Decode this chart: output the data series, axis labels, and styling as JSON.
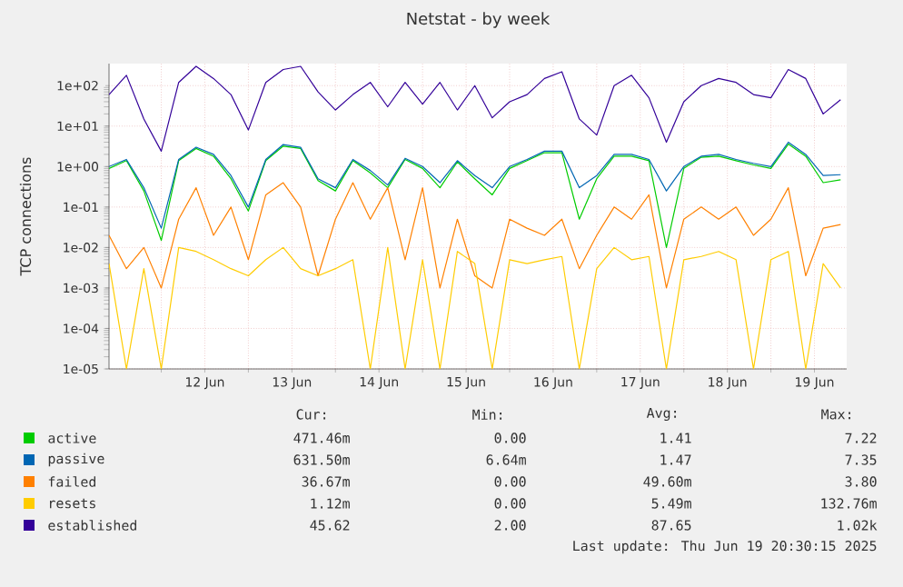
{
  "chart_data": {
    "type": "line",
    "title": "Netstat - by week",
    "ylabel": "TCP connections",
    "log": "y",
    "grid": true,
    "legend": "bottom",
    "marker": "none",
    "line_style": "solid",
    "xlim": [
      "2025-06-11T09:36",
      "2025-06-19T20:53"
    ],
    "ylim": [
      1e-05,
      350
    ],
    "xticks": [
      {
        "value": "2025-06-12",
        "label": null
      },
      {
        "value": "2025-06-12T12:00",
        "label": "12 Jun"
      },
      {
        "value": "2025-06-13",
        "label": null
      },
      {
        "value": "2025-06-13T12:00",
        "label": "13 Jun"
      },
      {
        "value": "2025-06-14",
        "label": null
      },
      {
        "value": "2025-06-14T12:00",
        "label": "14 Jun"
      },
      {
        "value": "2025-06-15",
        "label": null
      },
      {
        "value": "2025-06-15T12:00",
        "label": "15 Jun"
      },
      {
        "value": "2025-06-16",
        "label": null
      },
      {
        "value": "2025-06-16T12:00",
        "label": "16 Jun"
      },
      {
        "value": "2025-06-17",
        "label": null
      },
      {
        "value": "2025-06-17T12:00",
        "label": "17 Jun"
      },
      {
        "value": "2025-06-18",
        "label": null
      },
      {
        "value": "2025-06-18T12:00",
        "label": "18 Jun"
      },
      {
        "value": "2025-06-19",
        "label": null
      },
      {
        "value": "2025-06-19T12:00",
        "label": "19 Jun"
      }
    ],
    "yticks": [
      {
        "value": 1e-05,
        "label": "1e-05"
      },
      {
        "value": 0.0001,
        "label": "1e-04"
      },
      {
        "value": 0.001,
        "label": "1e-03"
      },
      {
        "value": 0.01,
        "label": "1e-02"
      },
      {
        "value": 0.1,
        "label": "1e-01"
      },
      {
        "value": 1,
        "label": "1e+00"
      },
      {
        "value": 10,
        "label": "1e+01"
      },
      {
        "value": 100,
        "label": "1e+02"
      }
    ],
    "x": [
      "2025-06-11T09:36",
      "2025-06-11T14:24",
      "2025-06-11T19:12",
      "2025-06-12T00:00",
      "2025-06-12T04:48",
      "2025-06-12T09:36",
      "2025-06-12T14:24",
      "2025-06-12T19:12",
      "2025-06-13T00:00",
      "2025-06-13T04:48",
      "2025-06-13T09:36",
      "2025-06-13T14:24",
      "2025-06-13T19:12",
      "2025-06-14T00:00",
      "2025-06-14T04:48",
      "2025-06-14T09:36",
      "2025-06-14T14:24",
      "2025-06-14T19:12",
      "2025-06-15T00:00",
      "2025-06-15T04:48",
      "2025-06-15T09:36",
      "2025-06-15T14:24",
      "2025-06-15T19:12",
      "2025-06-16T00:00",
      "2025-06-16T04:48",
      "2025-06-16T09:36",
      "2025-06-16T14:24",
      "2025-06-16T19:12",
      "2025-06-17T00:00",
      "2025-06-17T04:48",
      "2025-06-17T09:36",
      "2025-06-17T14:24",
      "2025-06-17T19:12",
      "2025-06-18T00:00",
      "2025-06-18T04:48",
      "2025-06-18T09:36",
      "2025-06-18T14:24",
      "2025-06-18T19:12",
      "2025-06-19T00:00",
      "2025-06-19T04:48",
      "2025-06-19T09:36",
      "2025-06-19T14:24",
      "2025-06-19T19:12"
    ],
    "series": [
      {
        "name": "active",
        "color": "#00cc00",
        "values": [
          0.9,
          1.4,
          0.25,
          0.015,
          1.4,
          2.8,
          1.8,
          0.5,
          0.08,
          1.4,
          3.2,
          2.8,
          0.45,
          0.25,
          1.4,
          0.7,
          0.3,
          1.5,
          0.9,
          0.3,
          1.3,
          0.5,
          0.2,
          0.9,
          1.4,
          2.2,
          2.2,
          0.05,
          0.5,
          1.8,
          1.8,
          1.4,
          0.01,
          0.9,
          1.7,
          1.8,
          1.4,
          1.1,
          0.9,
          3.6,
          1.8,
          0.4,
          0.47
        ]
      },
      {
        "name": "passive",
        "color": "#0066b3",
        "values": [
          1.0,
          1.5,
          0.3,
          0.03,
          1.5,
          3,
          2,
          0.6,
          0.1,
          1.5,
          3.5,
          3,
          0.5,
          0.3,
          1.5,
          0.8,
          0.35,
          1.6,
          1.0,
          0.4,
          1.4,
          0.6,
          0.3,
          1.0,
          1.5,
          2.4,
          2.4,
          0.3,
          0.6,
          2,
          2,
          1.5,
          0.25,
          1.0,
          1.8,
          2,
          1.5,
          1.2,
          1.0,
          4,
          2,
          0.6,
          0.63
        ]
      },
      {
        "name": "failed",
        "color": "#ff8000",
        "values": [
          0.02,
          0.003,
          0.01,
          0.001,
          0.05,
          0.3,
          0.02,
          0.1,
          0.005,
          0.2,
          0.4,
          0.1,
          0.002,
          0.05,
          0.4,
          0.05,
          0.3,
          0.005,
          0.3,
          0.001,
          0.05,
          0.002,
          0.001,
          0.05,
          0.03,
          0.02,
          0.05,
          0.003,
          0.02,
          0.1,
          0.05,
          0.2,
          0.001,
          0.05,
          0.1,
          0.05,
          0.1,
          0.02,
          0.05,
          0.3,
          0.002,
          0.03,
          0.037
        ]
      },
      {
        "name": "resets",
        "color": "#ffcc00",
        "values": [
          0.004,
          1e-05,
          0.003,
          1e-05,
          0.01,
          0.008,
          0.005,
          0.003,
          0.002,
          0.005,
          0.01,
          0.003,
          0.002,
          0.003,
          0.005,
          1e-05,
          0.01,
          1e-05,
          0.005,
          1e-05,
          0.008,
          0.004,
          1e-05,
          0.005,
          0.004,
          0.005,
          0.006,
          1e-05,
          0.003,
          0.01,
          0.005,
          0.006,
          1e-05,
          0.005,
          0.006,
          0.008,
          0.005,
          1e-05,
          0.005,
          0.008,
          1e-05,
          0.004,
          0.001
        ]
      },
      {
        "name": "established",
        "color": "#330099",
        "values": [
          60,
          180,
          15,
          2.4,
          120,
          300,
          150,
          60,
          8,
          120,
          250,
          300,
          70,
          25,
          60,
          120,
          30,
          120,
          35,
          120,
          25,
          100,
          16,
          40,
          60,
          150,
          220,
          15,
          6,
          100,
          180,
          50,
          4,
          40,
          100,
          150,
          120,
          60,
          50,
          250,
          150,
          20,
          45
        ]
      }
    ],
    "annotations": [
      "Cur:",
      "Min:",
      "Avg:",
      "Max:",
      "471.46m",
      "0.00",
      "1.41",
      "7.22",
      "631.50m",
      "6.64m",
      "1.47",
      "7.35",
      "36.67m",
      "0.00",
      "49.60m",
      "3.80",
      "1.12m",
      "0.00",
      "5.49m",
      "132.76m",
      "45.62",
      "2.00",
      "87.65",
      "1.02k",
      "Last update: Thu Jun 19 20:30:15 2025"
    ]
  }
}
